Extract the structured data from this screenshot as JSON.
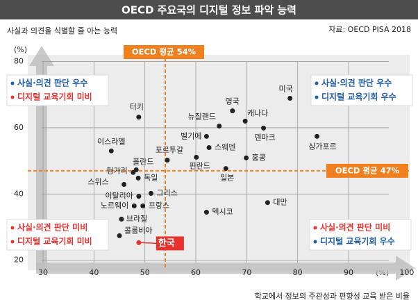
{
  "chart_data": {
    "type": "scatter",
    "title": "OECD 주요국의 디지털 정보 파악 능력",
    "source": "자료: OECD PISA 2018",
    "y_label": "사실과 의견을 식별할 줄 아는 능력",
    "y_unit": "(%)",
    "x_label": "학교에서 정보의 주관성과 편향성 교육 받은 비율",
    "x_unit": "(%)",
    "xlim": [
      27,
      102
    ],
    "xticks": [
      30,
      40,
      50,
      60,
      70,
      80,
      90,
      100
    ],
    "ylim": [
      17,
      82
    ],
    "yticks": [
      20,
      40,
      60,
      80
    ],
    "grid": true,
    "color": "#222222",
    "highlight_color": "#e8322e",
    "highlight_index": 26,
    "labels": [
      "미국",
      "영국",
      "캐나다",
      "뉴질랜드",
      "덴마크",
      "싱가포르",
      "벨기에",
      "스웨덴",
      "홍콩",
      "핀란드",
      "일본",
      "포르투갈",
      "터키",
      "이스라엘",
      "폴란드",
      "헝가리",
      "독일",
      "스위스",
      "이탈리아",
      "그리스",
      "노르웨이",
      "프랑스",
      "대만",
      "멕시코",
      "브라질",
      "콜롬비아",
      "한국"
    ],
    "x": [
      78.5,
      67.2,
      69.7,
      64.6,
      73.3,
      83.8,
      62.1,
      62.6,
      69.9,
      60.1,
      65.9,
      54.4,
      48.8,
      43.4,
      48.3,
      47.7,
      48.7,
      45.9,
      48.8,
      51.2,
      47.9,
      49.6,
      74.1,
      62.1,
      45.4,
      45.0,
      48.8
    ],
    "y": [
      68.9,
      65.1,
      62.0,
      60.5,
      59.9,
      57.4,
      57.4,
      54.0,
      50.9,
      51.1,
      47.7,
      50.2,
      63.2,
      53.0,
      47.3,
      46.5,
      44.8,
      42.9,
      39.3,
      40.2,
      36.4,
      36.4,
      37.4,
      34.5,
      32.4,
      27.4,
      25.3
    ],
    "reference_lines": [
      {
        "axis": "x",
        "value": 54,
        "label": "OECD 평균 54%",
        "color": "#f07f1e"
      },
      {
        "axis": "y",
        "value": 47,
        "label": "OECD 평균 47%",
        "color": "#f07f1e"
      }
    ],
    "quadrant_notes": [
      {
        "corner": "top-left",
        "lines": [
          {
            "text": "사실·의견 판단 우수",
            "color": "#1f5fa8"
          },
          {
            "text": "디지털 교육기회 미비",
            "color": "#e8322e"
          }
        ]
      },
      {
        "corner": "top-right",
        "lines": [
          {
            "text": "사실·의견 판단 우수",
            "color": "#1f5fa8"
          },
          {
            "text": "디지털 교육기회 우수",
            "color": "#1f5fa8"
          }
        ]
      },
      {
        "corner": "bottom-left",
        "lines": [
          {
            "text": "사실·의견 판단 미비",
            "color": "#e8322e"
          },
          {
            "text": "디지털 교육기회 미비",
            "color": "#e8322e"
          }
        ]
      },
      {
        "corner": "bottom-right",
        "lines": [
          {
            "text": "사실·의견 판단 미비",
            "color": "#e8322e"
          },
          {
            "text": "디지털 교육기회 우수",
            "color": "#1f5fa8"
          }
        ]
      }
    ]
  }
}
